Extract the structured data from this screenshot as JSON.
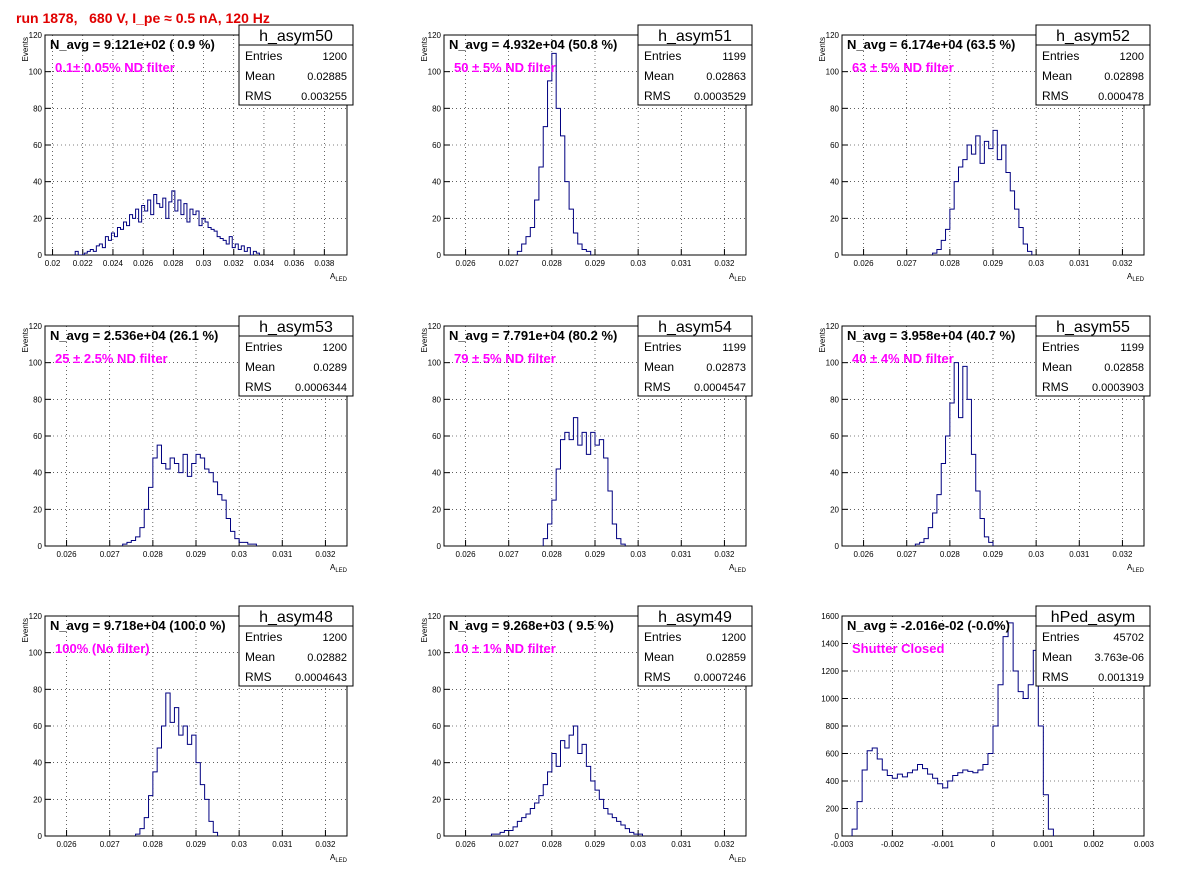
{
  "run_title": "run 1878,   680 V, I_pe ≈ 0.5 nA, 120 Hz",
  "colors": {
    "title": "#e00000",
    "annotation": "#ff00ff",
    "histogram": "#000080",
    "grid": "#000000"
  },
  "chart_data": [
    {
      "type": "histogram",
      "name": "h_asym50",
      "stats": {
        "entries": "1200",
        "mean": "0.02885",
        "rms": "0.003255"
      },
      "nline": "N_avg = 9.121e+02 ( 0.9 %)",
      "filter": "0.1± 0.05% ND filter",
      "xlabel": "A",
      "xlabel_sub": "LED",
      "ylabel": "Events",
      "xlim": [
        0.0195,
        0.0395
      ],
      "ylim": [
        0,
        120
      ],
      "xticks": [
        0.02,
        0.022,
        0.024,
        0.026,
        0.028,
        0.03,
        0.032,
        0.034,
        0.036,
        0.038
      ],
      "xtick_labels": [
        "0.02",
        "0.022",
        "0.024",
        "0.026",
        "0.028",
        "0.03",
        "0.032",
        "0.034",
        "0.036",
        "0.038"
      ],
      "yticks": [
        0,
        20,
        40,
        60,
        80,
        100,
        120
      ],
      "bin_start": 0.0215,
      "bin_width": 0.0002,
      "counts": [
        2,
        0,
        0,
        1,
        2,
        3,
        2,
        5,
        6,
        4,
        10,
        8,
        12,
        10,
        15,
        14,
        18,
        16,
        22,
        20,
        25,
        18,
        27,
        24,
        30,
        22,
        33,
        28,
        26,
        31,
        20,
        29,
        35,
        24,
        30,
        22,
        28,
        18,
        25,
        22,
        24,
        16,
        20,
        18,
        15,
        14,
        13,
        10,
        9,
        8,
        6,
        10,
        4,
        6,
        3,
        5,
        2,
        4,
        0,
        2,
        1
      ]
    },
    {
      "type": "histogram",
      "name": "h_asym51",
      "stats": {
        "entries": "1199",
        "mean": "0.02863",
        "rms": "0.0003529"
      },
      "nline": "N_avg = 4.932e+04 (50.8 %)",
      "filter": "50 ± 5% ND filter",
      "xlabel": "A",
      "xlabel_sub": "LED",
      "ylabel": "Events",
      "xlim": [
        0.0255,
        0.0325
      ],
      "ylim": [
        0,
        120
      ],
      "xticks": [
        0.026,
        0.027,
        0.028,
        0.029,
        0.03,
        0.031,
        0.032
      ],
      "xtick_labels": [
        "0.026",
        "0.027",
        "0.028",
        "0.029",
        "0.03",
        "0.031",
        "0.032"
      ],
      "yticks": [
        0,
        20,
        40,
        60,
        80,
        100,
        120
      ],
      "bin_start": 0.0272,
      "bin_width": 0.0001,
      "counts": [
        2,
        6,
        10,
        15,
        30,
        48,
        70,
        95,
        110,
        80,
        65,
        40,
        25,
        12,
        6,
        3,
        2
      ]
    },
    {
      "type": "histogram",
      "name": "h_asym52",
      "stats": {
        "entries": "1200",
        "mean": "0.02898",
        "rms": "0.000478"
      },
      "nline": "N_avg = 6.174e+04 (63.5 %)",
      "filter": "63 ± 5% ND filter",
      "xlabel": "A",
      "xlabel_sub": "LED",
      "ylabel": "Events",
      "xlim": [
        0.0255,
        0.0325
      ],
      "ylim": [
        0,
        120
      ],
      "xticks": [
        0.026,
        0.027,
        0.028,
        0.029,
        0.03,
        0.031,
        0.032
      ],
      "xtick_labels": [
        "0.026",
        "0.027",
        "0.028",
        "0.029",
        "0.03",
        "0.031",
        "0.032"
      ],
      "yticks": [
        0,
        20,
        40,
        60,
        80,
        100,
        120
      ],
      "bin_start": 0.0276,
      "bin_width": 0.0001,
      "counts": [
        1,
        3,
        8,
        14,
        25,
        40,
        48,
        52,
        60,
        55,
        65,
        50,
        62,
        58,
        68,
        52,
        60,
        45,
        35,
        25,
        15,
        6,
        2
      ]
    },
    {
      "type": "histogram",
      "name": "h_asym53",
      "stats": {
        "entries": "1200",
        "mean": "0.0289",
        "rms": "0.0006344"
      },
      "nline": "N_avg = 2.536e+04 (26.1 %)",
      "filter": "25 ± 2.5% ND filter",
      "xlabel": "A",
      "xlabel_sub": "LED",
      "ylabel": "Events",
      "xlim": [
        0.0255,
        0.0325
      ],
      "ylim": [
        0,
        120
      ],
      "xticks": [
        0.026,
        0.027,
        0.028,
        0.029,
        0.03,
        0.031,
        0.032
      ],
      "xtick_labels": [
        "0.026",
        "0.027",
        "0.028",
        "0.029",
        "0.03",
        "0.031",
        "0.032"
      ],
      "yticks": [
        0,
        20,
        40,
        60,
        80,
        100,
        120
      ],
      "bin_start": 0.0273,
      "bin_width": 0.0001,
      "counts": [
        1,
        2,
        3,
        5,
        10,
        20,
        32,
        48,
        55,
        45,
        42,
        48,
        45,
        40,
        50,
        38,
        45,
        50,
        48,
        42,
        40,
        35,
        28,
        25,
        15,
        8,
        4,
        2,
        2,
        1,
        1
      ]
    },
    {
      "type": "histogram",
      "name": "h_asym54",
      "stats": {
        "entries": "1199",
        "mean": "0.02873",
        "rms": "0.0004547"
      },
      "nline": "N_avg = 7.791e+04 (80.2 %)",
      "filter": "79 ± 5% ND filter",
      "xlabel": "A",
      "xlabel_sub": "LED",
      "ylabel": "Events",
      "xlim": [
        0.0255,
        0.0325
      ],
      "ylim": [
        0,
        120
      ],
      "xticks": [
        0.026,
        0.027,
        0.028,
        0.029,
        0.03,
        0.031,
        0.032
      ],
      "xtick_labels": [
        "0.026",
        "0.027",
        "0.028",
        "0.029",
        "0.03",
        "0.031",
        "0.032"
      ],
      "yticks": [
        0,
        20,
        40,
        60,
        80,
        100,
        120
      ],
      "bin_start": 0.0278,
      "bin_width": 0.0001,
      "counts": [
        4,
        12,
        25,
        42,
        58,
        62,
        58,
        70,
        55,
        62,
        50,
        62,
        55,
        58,
        48,
        30,
        12,
        4,
        1
      ]
    },
    {
      "type": "histogram",
      "name": "h_asym55",
      "stats": {
        "entries": "1199",
        "mean": "0.02858",
        "rms": "0.0003903"
      },
      "nline": "N_avg = 3.958e+04 (40.7 %)",
      "filter": "40 ± 4% ND filter",
      "xlabel": "A",
      "xlabel_sub": "LED",
      "ylabel": "Events",
      "xlim": [
        0.0255,
        0.0325
      ],
      "ylim": [
        0,
        120
      ],
      "xticks": [
        0.026,
        0.027,
        0.028,
        0.029,
        0.03,
        0.031,
        0.032
      ],
      "xtick_labels": [
        "0.026",
        "0.027",
        "0.028",
        "0.029",
        "0.03",
        "0.031",
        "0.032"
      ],
      "yticks": [
        0,
        20,
        40,
        60,
        80,
        100,
        120
      ],
      "bin_start": 0.0272,
      "bin_width": 0.0001,
      "counts": [
        1,
        2,
        4,
        10,
        18,
        28,
        45,
        60,
        78,
        100,
        70,
        98,
        80,
        50,
        30,
        15,
        5,
        2
      ]
    },
    {
      "type": "histogram",
      "name": "h_asym48",
      "stats": {
        "entries": "1200",
        "mean": "0.02882",
        "rms": "0.0004643"
      },
      "nline": "N_avg = 9.718e+04 (100.0 %)",
      "filter": "100% (No filter)",
      "xlabel": "A",
      "xlabel_sub": "LED",
      "ylabel": "Events",
      "xlim": [
        0.0255,
        0.0325
      ],
      "ylim": [
        0,
        120
      ],
      "xticks": [
        0.026,
        0.027,
        0.028,
        0.029,
        0.03,
        0.031,
        0.032
      ],
      "xtick_labels": [
        "0.026",
        "0.027",
        "0.028",
        "0.029",
        "0.03",
        "0.031",
        "0.032"
      ],
      "yticks": [
        0,
        20,
        40,
        60,
        80,
        100,
        120
      ],
      "bin_start": 0.0276,
      "bin_width": 0.0001,
      "counts": [
        1,
        4,
        10,
        22,
        35,
        48,
        60,
        78,
        62,
        70,
        55,
        60,
        50,
        55,
        40,
        28,
        20,
        8,
        2
      ]
    },
    {
      "type": "histogram",
      "name": "h_asym49",
      "stats": {
        "entries": "1200",
        "mean": "0.02859",
        "rms": "0.0007246"
      },
      "nline": "N_avg = 9.268e+03 ( 9.5 %)",
      "filter": "10 ± 1% ND filter",
      "xlabel": "A",
      "xlabel_sub": "LED",
      "ylabel": "Events",
      "xlim": [
        0.0255,
        0.0325
      ],
      "ylim": [
        0,
        120
      ],
      "xticks": [
        0.026,
        0.027,
        0.028,
        0.029,
        0.03,
        0.031,
        0.032
      ],
      "xtick_labels": [
        "0.026",
        "0.027",
        "0.028",
        "0.029",
        "0.03",
        "0.031",
        "0.032"
      ],
      "yticks": [
        0,
        20,
        40,
        60,
        80,
        100,
        120
      ],
      "bin_start": 0.0266,
      "bin_width": 0.0001,
      "counts": [
        1,
        1,
        2,
        3,
        3,
        5,
        8,
        10,
        12,
        15,
        18,
        22,
        28,
        35,
        45,
        38,
        52,
        48,
        55,
        60,
        45,
        50,
        38,
        30,
        25,
        20,
        15,
        12,
        10,
        8,
        6,
        4,
        2,
        1,
        1
      ]
    },
    {
      "type": "histogram",
      "name": "hPed_asym",
      "stats": {
        "entries": "45702",
        "mean": "3.763e-06",
        "rms": "0.001319"
      },
      "nline": "N_avg = -2.016e-02 (-0.0%)",
      "filter": "Shutter Closed",
      "xlabel": "",
      "xlabel_sub": "",
      "ylabel": "",
      "xlim": [
        -0.003,
        0.003
      ],
      "ylim": [
        0,
        1600
      ],
      "xticks": [
        -0.003,
        -0.002,
        -0.001,
        0,
        0.001,
        0.002,
        0.003
      ],
      "xtick_labels": [
        "-0.003",
        "-0.002",
        "-0.001",
        "0",
        "0.001",
        "0.002",
        "0.003"
      ],
      "yticks": [
        0,
        200,
        400,
        600,
        800,
        1000,
        1200,
        1400,
        1600
      ],
      "bin_start": -0.0028,
      "bin_width": 0.0001,
      "counts": [
        50,
        250,
        480,
        620,
        640,
        560,
        480,
        440,
        420,
        450,
        430,
        460,
        480,
        520,
        490,
        450,
        420,
        380,
        350,
        400,
        440,
        460,
        480,
        470,
        460,
        480,
        520,
        600,
        800,
        1100,
        1450,
        1550,
        1200,
        1050,
        1000,
        1100,
        1350,
        800,
        300,
        50
      ]
    }
  ]
}
